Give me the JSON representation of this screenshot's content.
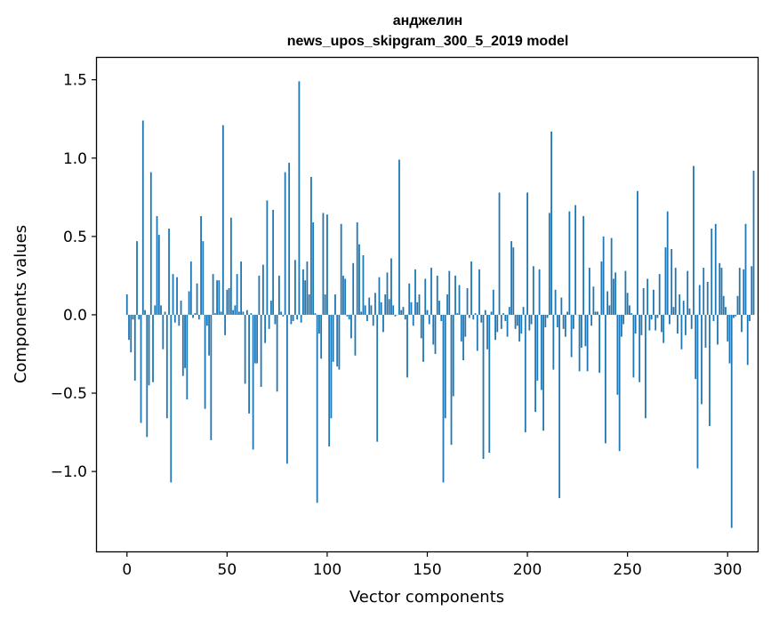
{
  "chart_data": {
    "type": "bar",
    "title": "анджелин",
    "subtitle": "news_upos_skipgram_300_5_2019 model",
    "xlabel": "Vector components",
    "ylabel": "Components values",
    "xlim": [
      -15,
      315
    ],
    "ylim": [
      -1.51,
      1.64
    ],
    "xticks": [
      0,
      50,
      100,
      150,
      200,
      250,
      300
    ],
    "yticks": [
      -1.0,
      -0.5,
      0.0,
      0.5,
      1.0,
      1.5
    ],
    "xtick_labels": [
      "0",
      "50",
      "100",
      "150",
      "200",
      "250",
      "300"
    ],
    "ytick_labels": [
      "−1.0",
      "−0.5",
      "0.0",
      "0.5",
      "1.0",
      "1.5"
    ],
    "bar_color": "#1f77b4",
    "grid": false,
    "values": [
      0.13,
      -0.16,
      -0.24,
      -0.03,
      -0.42,
      0.47,
      -0.03,
      -0.69,
      1.24,
      0.03,
      -0.78,
      -0.45,
      0.91,
      -0.43,
      0.06,
      0.63,
      0.51,
      0.06,
      -0.22,
      0.02,
      -0.66,
      0.55,
      -1.07,
      0.26,
      -0.05,
      0.24,
      -0.07,
      0.09,
      -0.39,
      -0.34,
      -0.54,
      0.15,
      0.34,
      -0.02,
      0.01,
      0.2,
      -0.03,
      0.63,
      0.47,
      -0.6,
      -0.07,
      -0.26,
      -0.8,
      0.26,
      0.01,
      0.22,
      0.22,
      0.02,
      1.21,
      -0.13,
      0.16,
      0.17,
      0.62,
      0.03,
      0.06,
      0.26,
      0.02,
      0.34,
      0.02,
      -0.44,
      0.03,
      -0.63,
      0.01,
      -0.86,
      -0.31,
      -0.31,
      0.25,
      -0.46,
      0.32,
      -0.18,
      0.73,
      -0.09,
      0.09,
      0.67,
      -0.06,
      -0.49,
      0.25,
      0.02,
      -0.01,
      0.91,
      -0.95,
      0.97,
      -0.06,
      -0.04,
      0.35,
      -0.03,
      1.49,
      -0.05,
      0.29,
      0.22,
      0.34,
      0.13,
      0.88,
      0.59,
      0.01,
      -1.2,
      -0.12,
      -0.28,
      0.65,
      0.13,
      0.64,
      -0.84,
      -0.66,
      -0.3,
      0.13,
      -0.33,
      -0.35,
      0.58,
      0.25,
      0.23,
      -0.01,
      -0.03,
      -0.15,
      0.33,
      -0.26,
      0.59,
      0.45,
      0.02,
      0.38,
      0.06,
      -0.04,
      0.11,
      0.06,
      -0.07,
      0.14,
      -0.81,
      0.24,
      0.08,
      -0.11,
      0.13,
      0.27,
      0.1,
      0.36,
      0.06,
      -0.01,
      0.0,
      0.99,
      0.03,
      0.05,
      -0.03,
      -0.4,
      0.2,
      0.08,
      -0.07,
      0.29,
      0.08,
      0.13,
      -0.15,
      -0.3,
      0.23,
      0.03,
      -0.06,
      0.3,
      -0.19,
      -0.25,
      0.25,
      0.09,
      -0.04,
      -1.07,
      -0.66,
      0.13,
      0.28,
      -0.83,
      -0.52,
      0.25,
      0.01,
      0.19,
      -0.17,
      -0.29,
      -0.14,
      0.17,
      -0.02,
      0.34,
      -0.03,
      0.01,
      -0.23,
      0.29,
      -0.05,
      -0.92,
      0.03,
      -0.22,
      -0.88,
      0.02,
      0.16,
      -0.16,
      -0.11,
      0.78,
      -0.09,
      0.01,
      -0.04,
      -0.14,
      0.05,
      0.47,
      0.43,
      -0.09,
      -0.07,
      -0.17,
      -0.12,
      0.05,
      -0.75,
      0.78,
      -0.1,
      -0.06,
      0.31,
      -0.62,
      -0.42,
      0.29,
      -0.48,
      -0.74,
      -0.08,
      -0.02,
      0.65,
      1.17,
      -0.35,
      0.16,
      -0.08,
      -1.17,
      0.11,
      -0.09,
      -0.14,
      0.02,
      0.66,
      -0.27,
      -0.09,
      0.7,
      0.0,
      -0.36,
      -0.21,
      0.63,
      -0.2,
      -0.36,
      0.3,
      -0.07,
      0.18,
      0.02,
      0.02,
      -0.37,
      0.34,
      0.5,
      -0.82,
      0.15,
      0.06,
      0.49,
      0.23,
      0.27,
      -0.51,
      -0.87,
      -0.14,
      -0.06,
      0.28,
      0.14,
      0.06,
      0.01,
      -0.4,
      -0.12,
      0.79,
      -0.43,
      -0.13,
      0.17,
      -0.66,
      0.23,
      -0.1,
      -0.03,
      0.16,
      -0.1,
      -0.02,
      0.26,
      -0.11,
      -0.18,
      0.43,
      0.66,
      -0.06,
      0.42,
      0.05,
      0.3,
      -0.12,
      0.13,
      -0.22,
      0.09,
      -0.13,
      0.28,
      0.04,
      -0.09,
      0.95,
      -0.41,
      -0.98,
      0.19,
      -0.57,
      0.3,
      -0.21,
      0.21,
      -0.71,
      0.55,
      -0.04,
      0.58,
      -0.19,
      0.33,
      0.3,
      0.12,
      0.05,
      -0.17,
      -0.31,
      -1.36,
      -0.02,
      -0.01,
      0.12,
      0.3,
      -0.11,
      0.29,
      0.58,
      -0.32,
      -0.04,
      0.31,
      0.92
    ]
  }
}
